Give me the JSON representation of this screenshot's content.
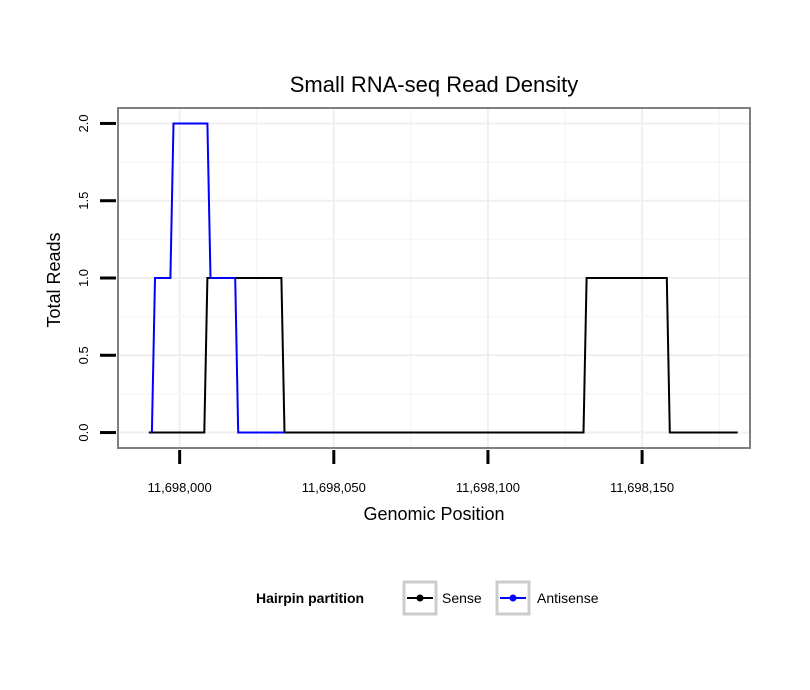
{
  "chart_data": {
    "type": "line",
    "title": "Small RNA-seq Read Density",
    "xlabel": "Genomic Position",
    "ylabel": "Total Reads",
    "xlim": [
      11697980,
      11698185
    ],
    "ylim": [
      -0.1,
      2.1
    ],
    "x_ticks": [
      {
        "value": 11698000,
        "label": "11,698,000"
      },
      {
        "value": 11698050,
        "label": "11,698,050"
      },
      {
        "value": 11698100,
        "label": "11,698,100"
      },
      {
        "value": 11698150,
        "label": "11,698,150"
      }
    ],
    "y_ticks": [
      {
        "value": 0.0,
        "label": "0.0"
      },
      {
        "value": 0.5,
        "label": "0.5"
      },
      {
        "value": 1.0,
        "label": "1.0"
      },
      {
        "value": 1.5,
        "label": "1.5"
      },
      {
        "value": 2.0,
        "label": "2.0"
      }
    ],
    "grid": true,
    "legend": {
      "title": "Hairpin partition",
      "position": "bottom"
    },
    "series": [
      {
        "name": "Sense",
        "color": "#000000",
        "points": [
          [
            11697990,
            0
          ],
          [
            11698008,
            0
          ],
          [
            11698009,
            1
          ],
          [
            11698018,
            1
          ],
          [
            11698033,
            1
          ],
          [
            11698034,
            0
          ],
          [
            11698131,
            0
          ],
          [
            11698132,
            1
          ],
          [
            11698158,
            1
          ],
          [
            11698159,
            0
          ],
          [
            11698181,
            0
          ]
        ]
      },
      {
        "name": "Antisense",
        "color": "#0000ff",
        "points": [
          [
            11697991,
            0
          ],
          [
            11697992,
            1
          ],
          [
            11697997,
            1
          ],
          [
            11697998,
            2
          ],
          [
            11698009,
            2
          ],
          [
            11698010,
            1
          ],
          [
            11698018,
            1
          ],
          [
            11698019,
            0
          ],
          [
            11698034,
            0
          ]
        ]
      }
    ]
  }
}
